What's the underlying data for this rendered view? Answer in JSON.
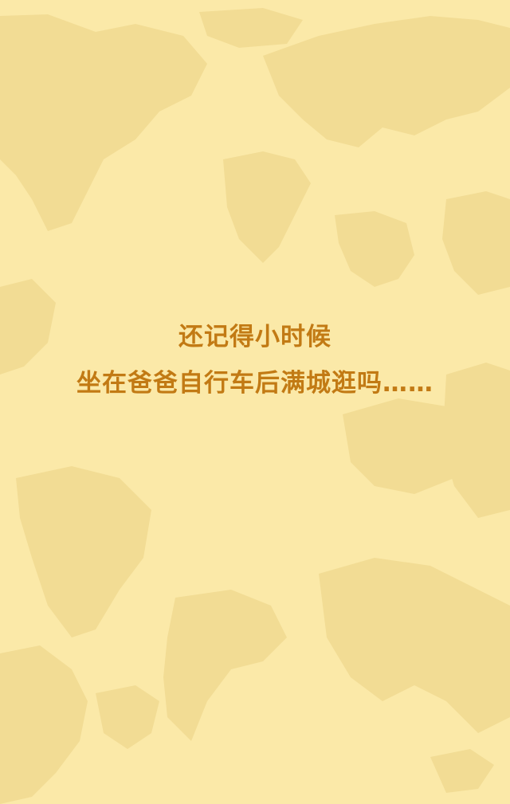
{
  "background": {
    "color": "#fbe9a8",
    "map_color": "#f2dc94",
    "decoration_icon": "world-map-icon"
  },
  "text": {
    "color": "#c27a14",
    "line1": "还记得小时候",
    "line2": "坐在爸爸自行车后满城逛吗……"
  }
}
